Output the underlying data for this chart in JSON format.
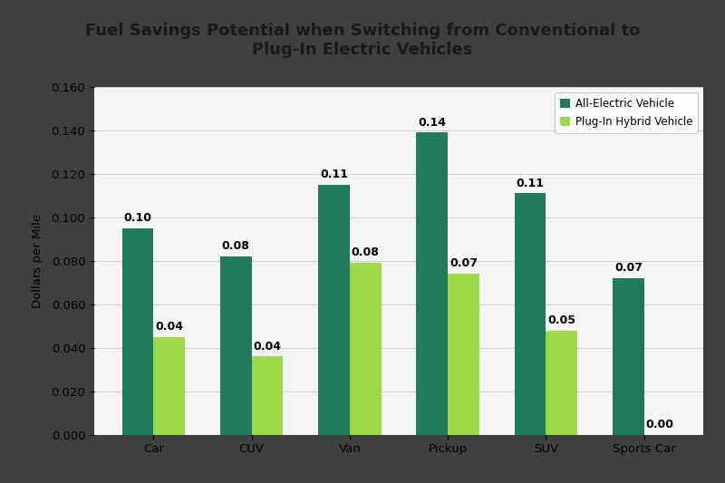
{
  "title": "Fuel Savings Potential when Switching from Conventional to\nPlug-In Electric Vehicles",
  "ylabel": "Dollars per Mile",
  "categories": [
    "Car",
    "CUV",
    "Van",
    "Pickup",
    "SUV",
    "Sports Car"
  ],
  "all_electric": [
    0.095,
    0.082,
    0.115,
    0.139,
    0.111,
    0.072
  ],
  "plug_in_hybrid": [
    0.045,
    0.036,
    0.079,
    0.074,
    0.048,
    0.0
  ],
  "all_electric_labels": [
    "0.10",
    "0.08",
    "0.11",
    "0.14",
    "0.11",
    "0.07"
  ],
  "plug_in_hybrid_labels": [
    "0.04",
    "0.04",
    "0.08",
    "0.07",
    "0.05",
    "0.00"
  ],
  "color_electric": "#1f7a5e",
  "color_hybrid": "#9ed94a",
  "ylim": [
    0,
    0.16
  ],
  "yticks": [
    0.0,
    0.02,
    0.04,
    0.06,
    0.08,
    0.1,
    0.12,
    0.14,
    0.16
  ],
  "legend_electric": "All-Electric Vehicle",
  "legend_hybrid": "Plug-In Hybrid Vehicle",
  "bar_width": 0.32,
  "outer_bg": "#404040",
  "inner_bg": "#f5f5f5",
  "title_fontsize": 13,
  "label_fontsize": 9.5,
  "tick_fontsize": 9.5,
  "annot_fontsize": 9,
  "title_color": "#1a1a1a"
}
